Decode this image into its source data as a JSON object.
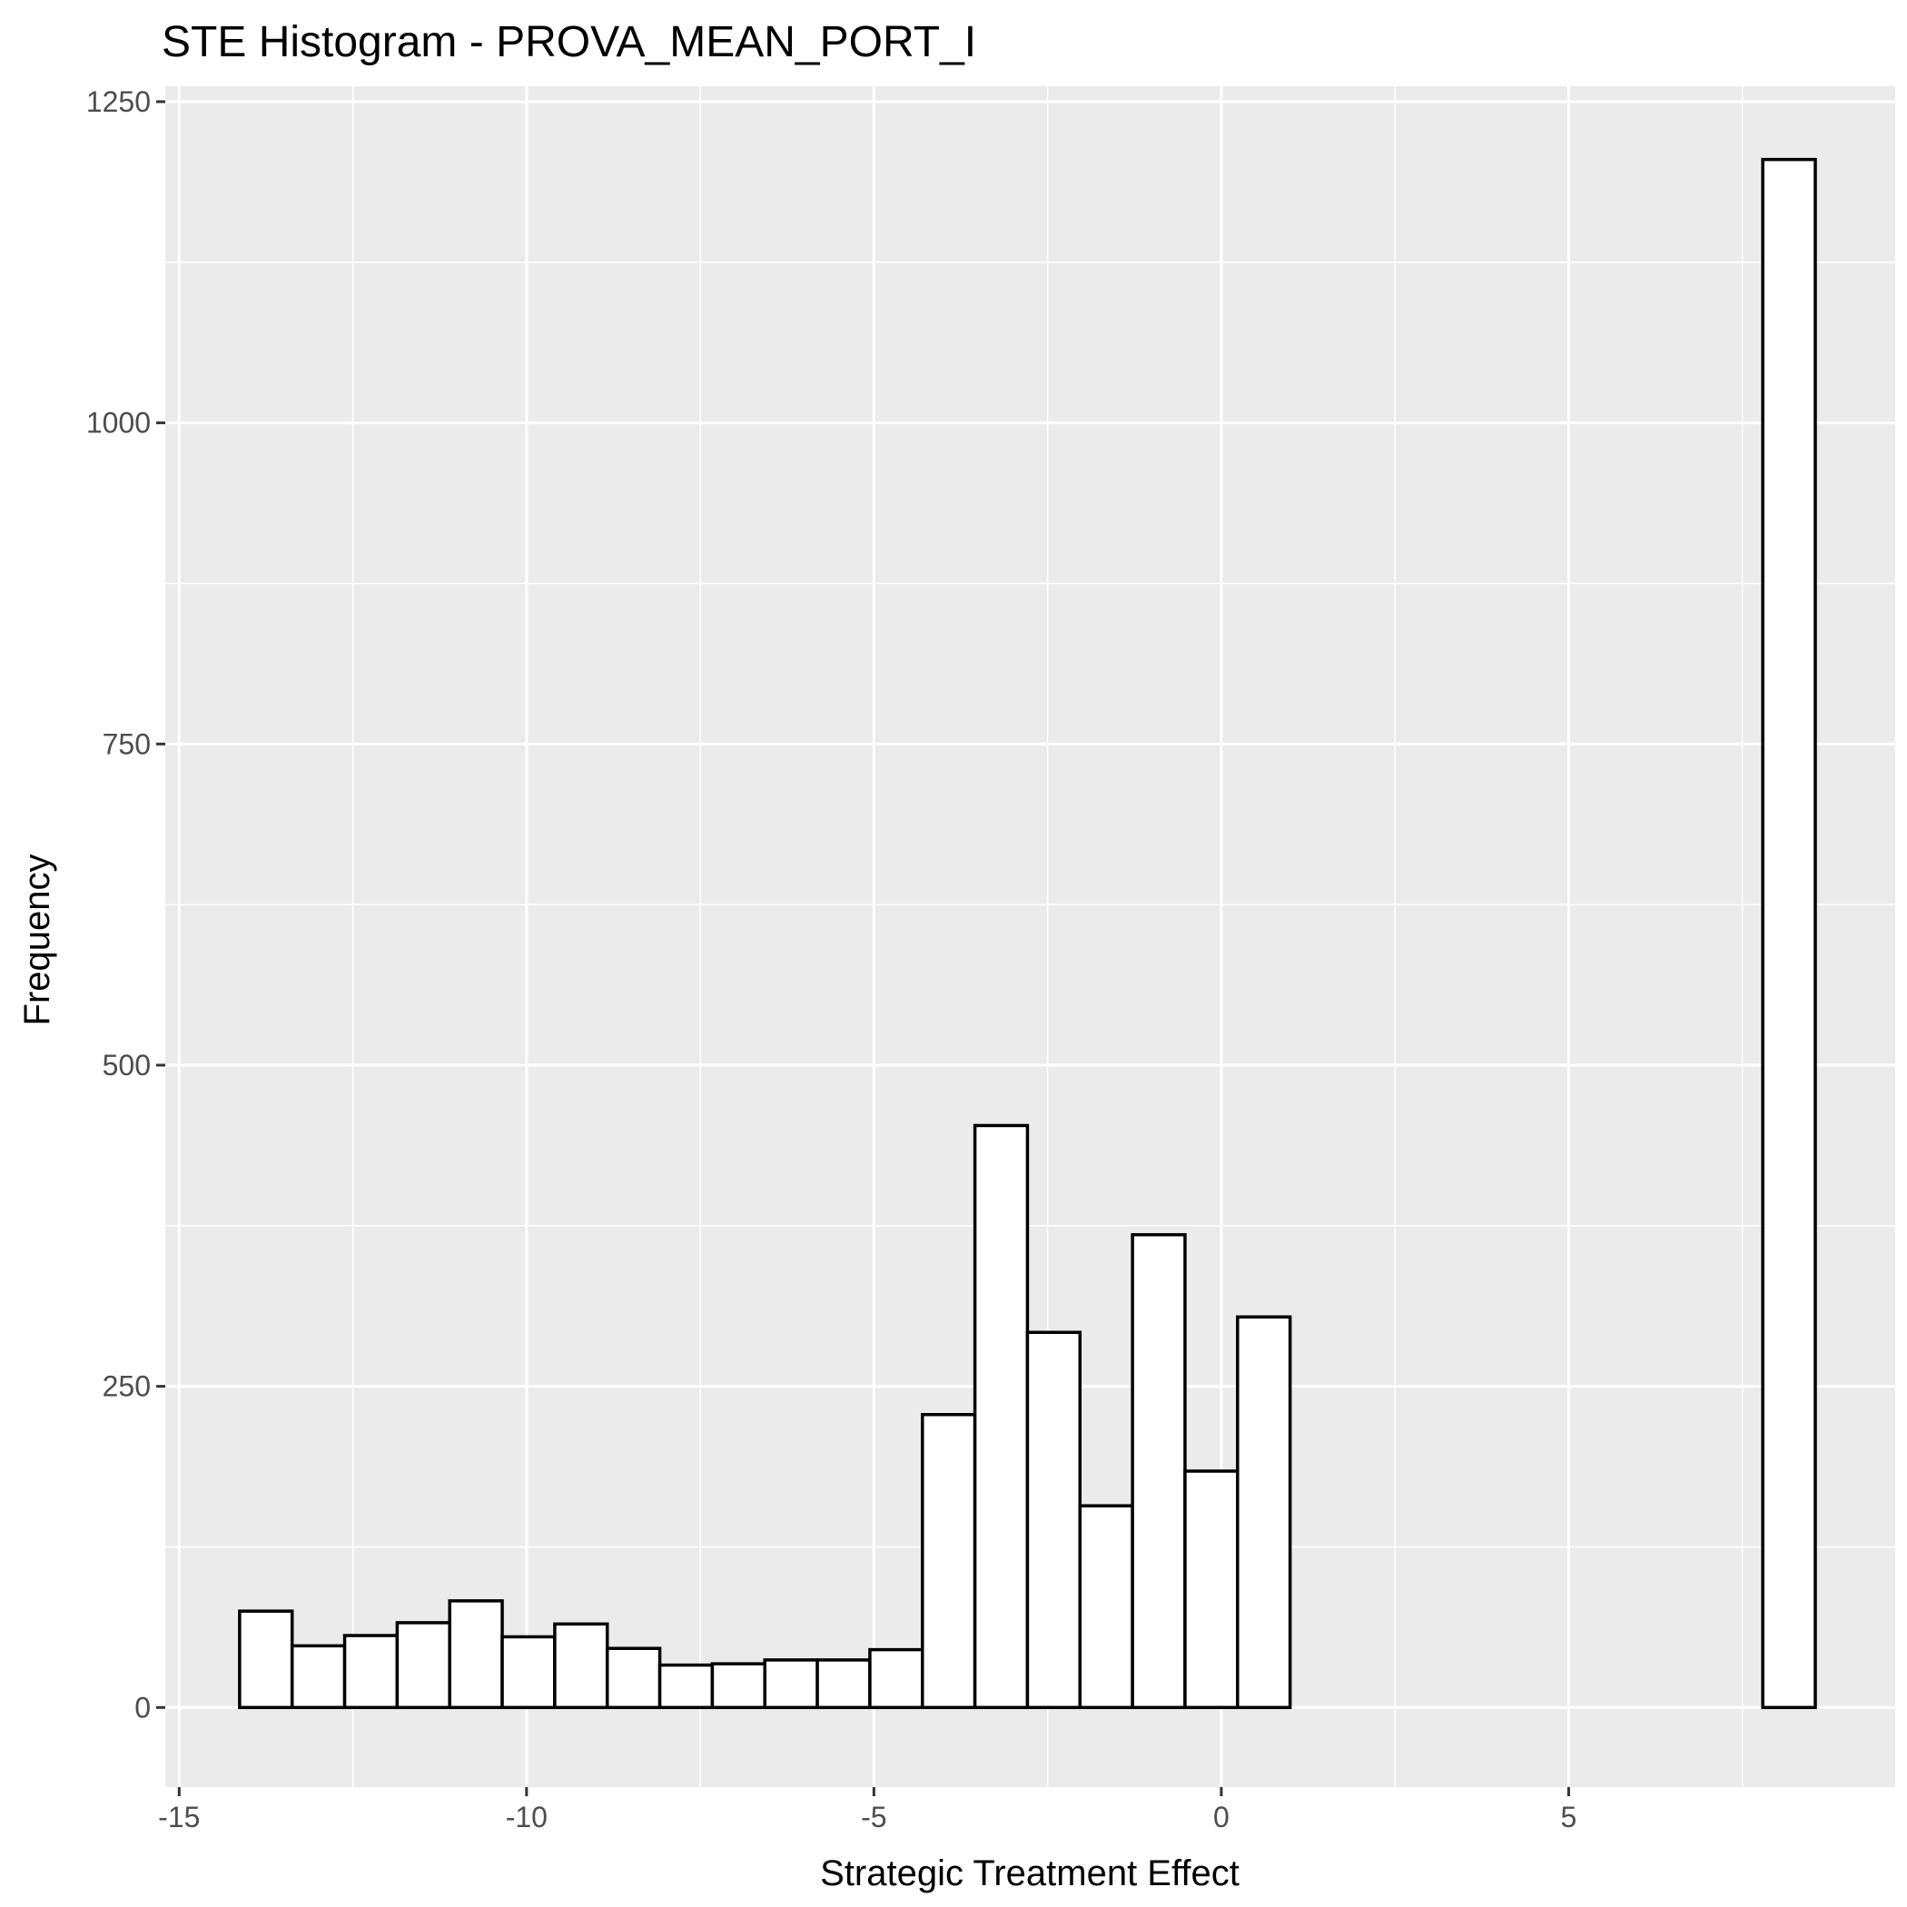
{
  "chart_data": {
    "type": "bar",
    "title": "STE Histogram -  PROVA_MEAN_PORT_I",
    "xlabel": "Strategic Treatment Effect",
    "ylabel": "Frequency",
    "xlim": [
      -15.2,
      9.7
    ],
    "ylim": [
      -62,
      1262
    ],
    "x_ticks": [
      -15,
      -10,
      -5,
      0,
      5
    ],
    "x_tick_labels": [
      "-15",
      "-10",
      "-5",
      "0",
      "5"
    ],
    "y_ticks": [
      0,
      250,
      500,
      750,
      1000,
      1250
    ],
    "y_tick_labels": [
      "0",
      "250",
      "500",
      "750",
      "1000",
      "1250"
    ],
    "grid": true,
    "bin_start": -14.13,
    "bin_width": 0.756,
    "values": [
      75,
      48,
      56,
      66,
      83,
      55,
      65,
      46,
      33,
      34,
      37,
      37,
      45,
      228,
      453,
      292,
      157,
      368,
      184,
      304,
      0,
      0,
      0,
      0,
      0,
      0,
      0,
      0,
      0,
      1205
    ]
  }
}
